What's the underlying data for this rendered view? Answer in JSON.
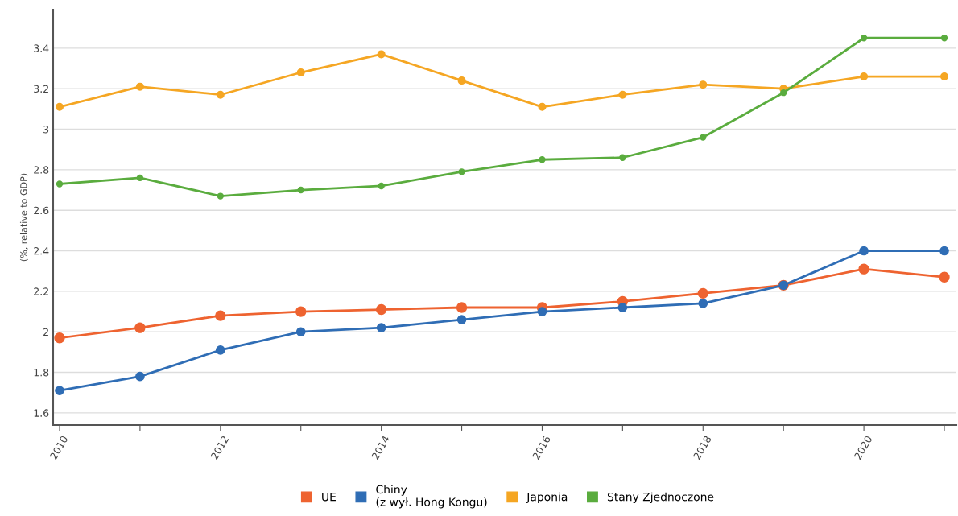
{
  "chart_data": {
    "type": "line",
    "ylabel": "(%, relative to GDP)",
    "x": [
      2010,
      2011,
      2012,
      2013,
      2014,
      2015,
      2016,
      2017,
      2018,
      2019,
      2020,
      2021
    ],
    "series": [
      {
        "name": "UE",
        "color": "#ee6330",
        "values": [
          1.97,
          2.02,
          2.08,
          2.1,
          2.11,
          2.12,
          2.12,
          2.15,
          2.19,
          2.23,
          2.31,
          2.27
        ]
      },
      {
        "name": "Chiny\n(z wył. Hong Kongu)",
        "color": "#2f6db5",
        "values": [
          1.71,
          1.78,
          1.91,
          2.0,
          2.02,
          2.06,
          2.1,
          2.12,
          2.14,
          2.23,
          2.4,
          2.4
        ]
      },
      {
        "name": "Japonia",
        "color": "#f5a623",
        "values": [
          3.11,
          3.21,
          3.17,
          3.28,
          3.37,
          3.24,
          3.11,
          3.17,
          3.22,
          3.2,
          3.26,
          3.26
        ]
      },
      {
        "name": "Stany Zjednoczone",
        "color": "#5aac3e",
        "values": [
          2.73,
          2.76,
          2.67,
          2.7,
          2.72,
          2.79,
          2.85,
          2.86,
          2.96,
          3.18,
          3.45,
          3.45
        ]
      }
    ],
    "xlim": [
      2009.92,
      2021.15
    ],
    "ylim": [
      1.54,
      3.59
    ],
    "xticks": [
      2010,
      {
        "value": 2011,
        "label": null
      },
      2012,
      {
        "value": 2013,
        "label": null
      },
      2014,
      {
        "value": 2015,
        "label": null
      },
      2016,
      {
        "value": 2017,
        "label": null
      },
      2018,
      {
        "value": 2019,
        "label": null
      },
      2020,
      {
        "value": 2021,
        "label": null
      }
    ],
    "yticks": [
      1.6,
      1.8,
      2,
      2.2,
      2.4,
      2.6,
      2.8,
      3,
      3.2,
      3.4
    ],
    "grid": "y",
    "legend": "bottom",
    "marker": "circle",
    "line_style": "solid"
  }
}
